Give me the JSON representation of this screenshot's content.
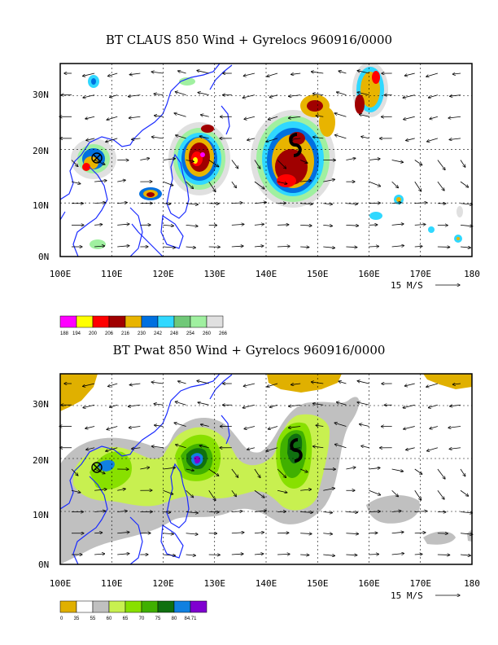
{
  "panels": [
    {
      "title": "BT CLAUS 850 Wind + Gyrelocs 960916/0000",
      "x_ticks": [
        "100E",
        "110E",
        "120E",
        "130E",
        "140E",
        "150E",
        "160E",
        "170E",
        "180"
      ],
      "y_ticks": [
        "0N",
        "10N",
        "20N",
        "30N"
      ],
      "vector_scale_label": "15 M/S",
      "colorbar": {
        "colors": [
          "#ff00ff",
          "#ffff00",
          "#ff0000",
          "#a00000",
          "#e8b400",
          "#0070e0",
          "#30d8ff",
          "#70c878",
          "#a0f0a0",
          "#e0e0e0"
        ],
        "labels": [
          "188",
          "194",
          "200",
          "206",
          "216",
          "230",
          "242",
          "248",
          "254",
          "260",
          "266"
        ]
      }
    },
    {
      "title": "BT Pwat 850 Wind + Gyrelocs 960916/0000",
      "x_ticks": [
        "100E",
        "110E",
        "120E",
        "130E",
        "140E",
        "150E",
        "160E",
        "170E",
        "180"
      ],
      "y_ticks": [
        "0N",
        "10N",
        "20N",
        "30N"
      ],
      "vector_scale_label": "15 M/S",
      "colorbar": {
        "colors": [
          "#e0b000",
          "#ffffff",
          "#c0c0c0",
          "#c8f050",
          "#88e000",
          "#40b000",
          "#107010",
          "#1080e0",
          "#8000d0"
        ],
        "labels": [
          "0",
          "35",
          "55",
          "60",
          "65",
          "70",
          "75",
          "80",
          "84.71"
        ]
      }
    }
  ]
}
